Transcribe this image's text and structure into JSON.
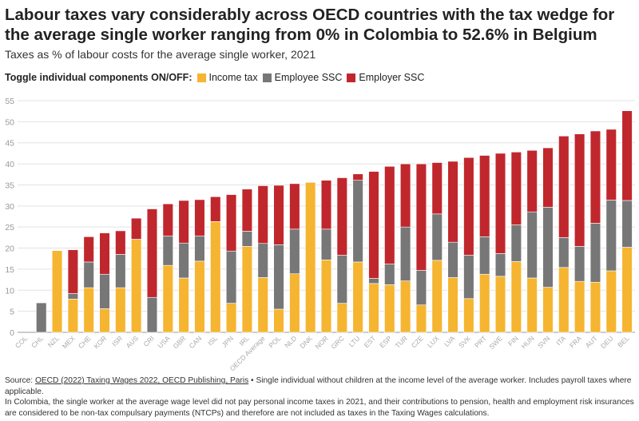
{
  "header": {
    "title": "Labour taxes vary considerably across OECD countries with the tax wedge for the average single worker ranging from 0% in Colombia to 52.6% in Belgium",
    "subtitle": "Taxes as % of labour costs for the average single worker, 2021"
  },
  "legend": {
    "lead": "Toggle individual components ON/OFF:",
    "items": [
      {
        "label": "Income tax",
        "color": "#f5b531"
      },
      {
        "label": "Employee SSC",
        "color": "#777777"
      },
      {
        "label": "Employer SSC",
        "color": "#c0272d"
      }
    ]
  },
  "footer": {
    "prefix": "Source: ",
    "source_link": "OECD (2022) Taxing Wages 2022, OECD Publishing, Paris",
    "source_note": " • Single individual without children at the income level of the average worker. Includes payroll taxes where applicable.",
    "note": "In Colombia, the single worker at the average wage level did not pay personal income taxes in 2021, and their contributions to pension, health and employment risk insurances are considered to be non-tax compulsary payments (NTCPs) and therefore are not included as taxes in the Taxing Wages calculations."
  },
  "chart_data": {
    "type": "bar",
    "stacked": true,
    "ylim": [
      0,
      55
    ],
    "yticks": [
      0,
      5,
      10,
      15,
      20,
      25,
      30,
      35,
      40,
      45,
      50,
      55
    ],
    "grid": true,
    "categories": [
      "COL",
      "CHL",
      "NZL",
      "MEX",
      "CHE",
      "KOR",
      "ISR",
      "AUS",
      "CRI",
      "USA",
      "GBR",
      "CAN",
      "ISL",
      "JPN",
      "IRL",
      "OECD Average",
      "POL",
      "NLD",
      "DNK",
      "NOR",
      "GRC",
      "LTU",
      "EST",
      "ESP",
      "TUR",
      "CZE",
      "LUX",
      "LVA",
      "SVK",
      "PRT",
      "SWE",
      "FIN",
      "HUN",
      "SVN",
      "ITA",
      "FRA",
      "AUT",
      "DEU",
      "BEL"
    ],
    "series": [
      {
        "name": "Income tax",
        "color": "#f5b531",
        "values": [
          0,
          0,
          19.4,
          7.9,
          10.6,
          5.6,
          10.6,
          22.1,
          0,
          15.9,
          12.9,
          16.9,
          26.3,
          6.9,
          20.4,
          13.0,
          5.5,
          13.9,
          35.6,
          17.2,
          6.9,
          16.7,
          11.6,
          11.3,
          12.2,
          6.5,
          17.1,
          13.0,
          8.0,
          13.8,
          13.3,
          16.8,
          12.9,
          10.7,
          15.4,
          12.1,
          11.9,
          14.6,
          20.2
        ]
      },
      {
        "name": "Employee SSC",
        "color": "#777777",
        "values": [
          0,
          7.0,
          0,
          1.3,
          6.1,
          8.2,
          7.9,
          0,
          8.3,
          7.0,
          8.3,
          6.0,
          0,
          12.4,
          3.6,
          8.1,
          15.3,
          10.6,
          0,
          7.3,
          11.4,
          19.4,
          1.2,
          4.9,
          12.8,
          8.2,
          11.0,
          8.4,
          10.3,
          8.9,
          5.4,
          8.7,
          15.7,
          19.0,
          7.1,
          8.3,
          14.0,
          16.8,
          11.1
        ]
      },
      {
        "name": "Employer SSC",
        "color": "#c0272d",
        "values": [
          0,
          0,
          0,
          10.4,
          6.0,
          9.8,
          5.6,
          5.0,
          21.0,
          7.6,
          10.1,
          8.6,
          5.9,
          13.4,
          10.0,
          13.7,
          14.1,
          10.8,
          0,
          11.6,
          18.4,
          1.5,
          25.4,
          23.2,
          15.0,
          25.3,
          12.2,
          19.2,
          23.2,
          19.3,
          23.8,
          17.3,
          14.6,
          14.1,
          24.1,
          26.7,
          21.9,
          16.8,
          21.3
        ]
      }
    ]
  }
}
